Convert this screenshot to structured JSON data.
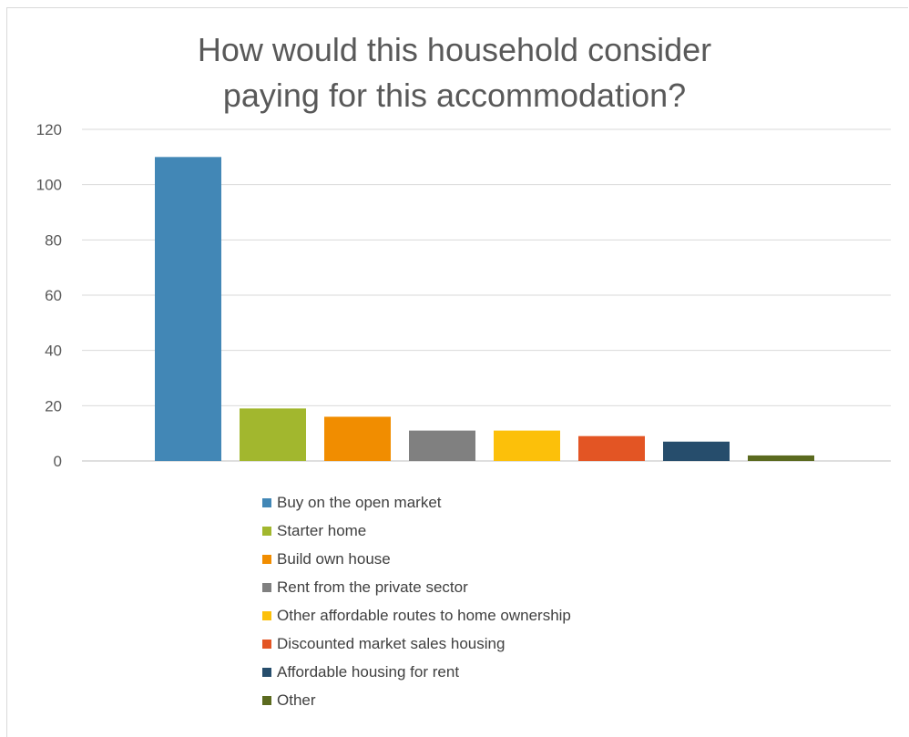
{
  "header": {
    "partial_text": ""
  },
  "chart_data": {
    "type": "bar",
    "title_lines": [
      "How would this household consider",
      "paying for this accommodation?"
    ],
    "categories": [
      "Buy on the open market",
      "Starter home",
      "Build own house",
      "Rent from the private sector",
      "Other affordable routes to home ownership",
      "Discounted market sales housing",
      "Affordable housing for rent",
      "Other"
    ],
    "values": [
      110,
      19,
      16,
      11,
      11,
      9,
      7,
      2
    ],
    "colors": [
      "#4287b6",
      "#a2b72e",
      "#f18d00",
      "#808080",
      "#fcc00a",
      "#e35524",
      "#264d6c",
      "#5b6a1f"
    ],
    "ylim": [
      0,
      120
    ],
    "yticks": [
      0,
      20,
      40,
      60,
      80,
      100,
      120
    ],
    "grid": true,
    "legend_position": "bottom"
  }
}
